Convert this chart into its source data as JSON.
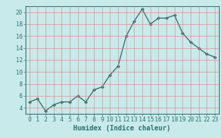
{
  "x": [
    0,
    1,
    2,
    3,
    4,
    5,
    6,
    7,
    8,
    9,
    10,
    11,
    12,
    13,
    14,
    15,
    16,
    17,
    18,
    19,
    20,
    21,
    22,
    23
  ],
  "y": [
    5.0,
    5.5,
    3.5,
    4.5,
    5.0,
    5.0,
    6.0,
    5.0,
    7.0,
    7.5,
    9.5,
    11.0,
    16.0,
    18.5,
    20.5,
    18.0,
    19.0,
    19.0,
    19.5,
    16.5,
    15.0,
    14.0,
    13.0,
    12.5
  ],
  "xlabel": "Humidex (Indice chaleur)",
  "ylabel": "",
  "ylim": [
    3,
    21
  ],
  "xlim": [
    -0.5,
    23.5
  ],
  "yticks": [
    4,
    6,
    8,
    10,
    12,
    14,
    16,
    18,
    20
  ],
  "xticks": [
    0,
    1,
    2,
    3,
    4,
    5,
    6,
    7,
    8,
    9,
    10,
    11,
    12,
    13,
    14,
    15,
    16,
    17,
    18,
    19,
    20,
    21,
    22,
    23
  ],
  "line_color": "#2d7070",
  "bg_color": "#c8eaea",
  "grid_color": "#e08080",
  "marker": "D",
  "markersize": 2.2,
  "linewidth": 1.0,
  "xlabel_fontsize": 7,
  "tick_fontsize": 6
}
